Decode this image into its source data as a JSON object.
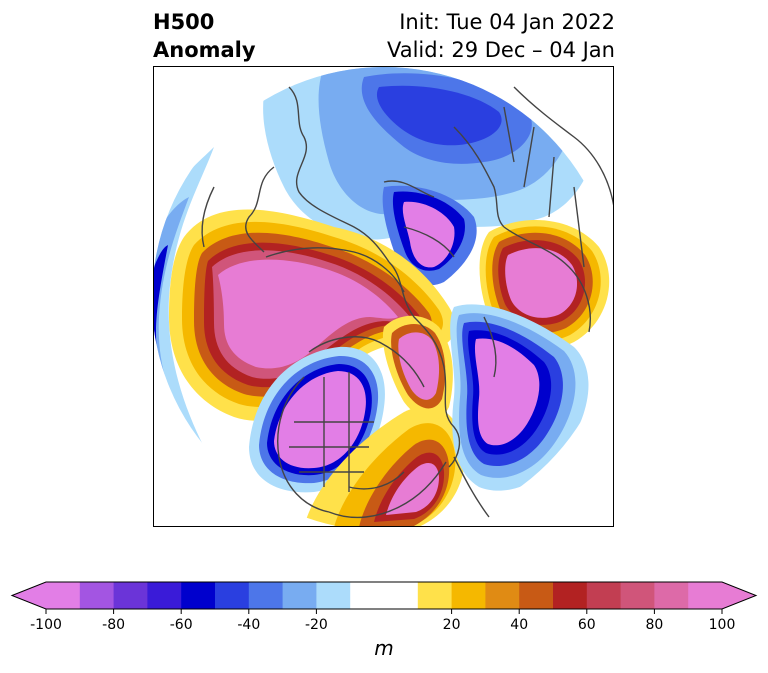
{
  "header": {
    "title_line1": "H500",
    "title_line2": "Anomaly",
    "init": "Init: Tue 04 Jan 2022",
    "valid": "Valid: 29 Dec – 04 Jan"
  },
  "map": {
    "projection": "north-polar-stereographic",
    "field": "500 hPa geopotential height anomaly"
  },
  "colorbar": {
    "unit": "m",
    "ticks": [
      "-100",
      "-80",
      "-60",
      "-40",
      "-20",
      "20",
      "40",
      "60",
      "80",
      "100"
    ],
    "tick_values": [
      -100,
      -80,
      -60,
      -40,
      -20,
      20,
      40,
      60,
      80,
      100
    ],
    "levels": [
      -100,
      -90,
      -80,
      -70,
      -60,
      -50,
      -40,
      -30,
      -20,
      -10,
      10,
      20,
      30,
      40,
      50,
      60,
      70,
      80,
      90,
      100
    ],
    "colors": [
      "#e27ee6",
      "#a355e2",
      "#6b34d8",
      "#3a1bd8",
      "#0000cd",
      "#2a3fe0",
      "#4d76e9",
      "#78acf1",
      "#acdcfb",
      "#ffffff",
      "#ffe14a",
      "#f5b800",
      "#e08b14",
      "#c85a15",
      "#b22222",
      "#c23e52",
      "#d0557a",
      "#dd6aa8",
      "#e77cd4"
    ],
    "extend_low_color": "#e27ee6",
    "extend_high_color": "#e77cd4"
  }
}
